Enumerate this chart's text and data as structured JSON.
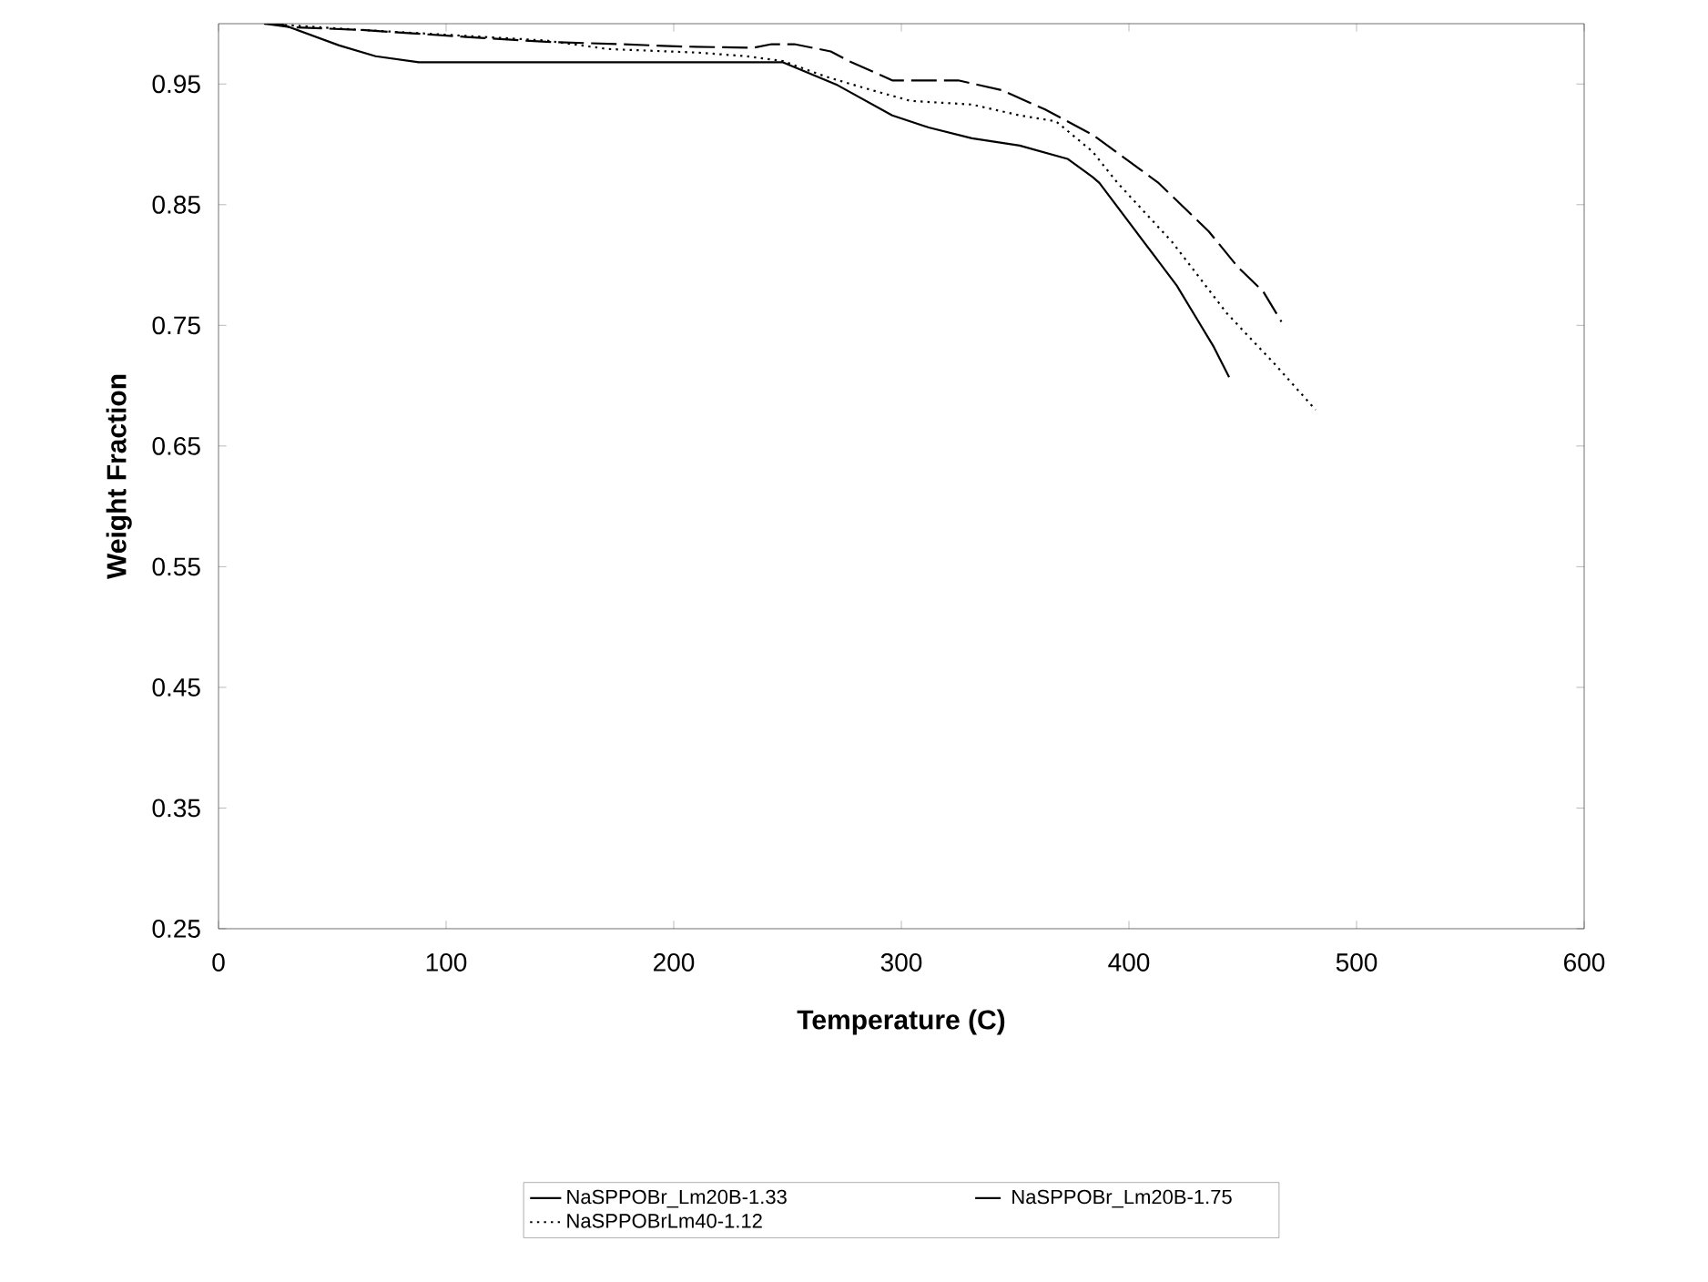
{
  "chart_data": {
    "type": "line",
    "xlabel": "Temperature (C)",
    "ylabel": "Weight Fraction",
    "xlim": [
      0,
      600
    ],
    "xticks": [
      0,
      100,
      200,
      300,
      400,
      500,
      600
    ],
    "ylim": [
      0.25,
      1.0
    ],
    "yticks": [
      0.25,
      0.35,
      0.45,
      0.55,
      0.65,
      0.75,
      0.85,
      0.95
    ],
    "legend": "bottom",
    "grid": false,
    "marker": "none",
    "series": [
      {
        "name": "NaSPPOBr_Lm20B-1.33",
        "color": "#000000",
        "line_style": "solid",
        "x": [
          20,
          27,
          53,
          69,
          88,
          248,
          272,
          296,
          312,
          331,
          352,
          373,
          384,
          387,
          405,
          421,
          429,
          437,
          444
        ],
        "values": [
          1.0,
          1.0,
          0.982,
          0.973,
          0.968,
          0.968,
          0.949,
          0.924,
          0.914,
          0.905,
          0.899,
          0.888,
          0.873,
          0.868,
          0.823,
          0.783,
          0.758,
          0.733,
          0.707
        ]
      },
      {
        "name": "NaSPPOBr_Lm20B-1.75",
        "color": "#000000",
        "line_style": "dashed",
        "x": [
          20,
          32,
          61,
          85,
          117,
          144,
          176,
          205,
          235,
          243,
          253,
          269,
          277,
          296,
          325,
          344,
          363,
          384,
          413,
          435,
          448,
          459,
          467
        ],
        "values": [
          1.0,
          0.997,
          0.995,
          0.992,
          0.988,
          0.985,
          0.983,
          0.981,
          0.98,
          0.983,
          0.983,
          0.977,
          0.969,
          0.953,
          0.953,
          0.945,
          0.929,
          0.908,
          0.868,
          0.828,
          0.798,
          0.778,
          0.753
        ]
      },
      {
        "name": "NaSPPOBrLm40-1.12",
        "color": "#000000",
        "line_style": "dotted",
        "x": [
          20,
          61,
          117,
          144,
          171,
          211,
          232,
          248,
          267,
          285,
          304,
          331,
          352,
          368,
          384,
          395,
          419,
          443,
          464,
          482
        ],
        "values": [
          1.0,
          0.995,
          0.989,
          0.986,
          0.979,
          0.976,
          0.973,
          0.969,
          0.956,
          0.946,
          0.936,
          0.933,
          0.924,
          0.919,
          0.894,
          0.868,
          0.819,
          0.76,
          0.718,
          0.68
        ]
      }
    ]
  }
}
